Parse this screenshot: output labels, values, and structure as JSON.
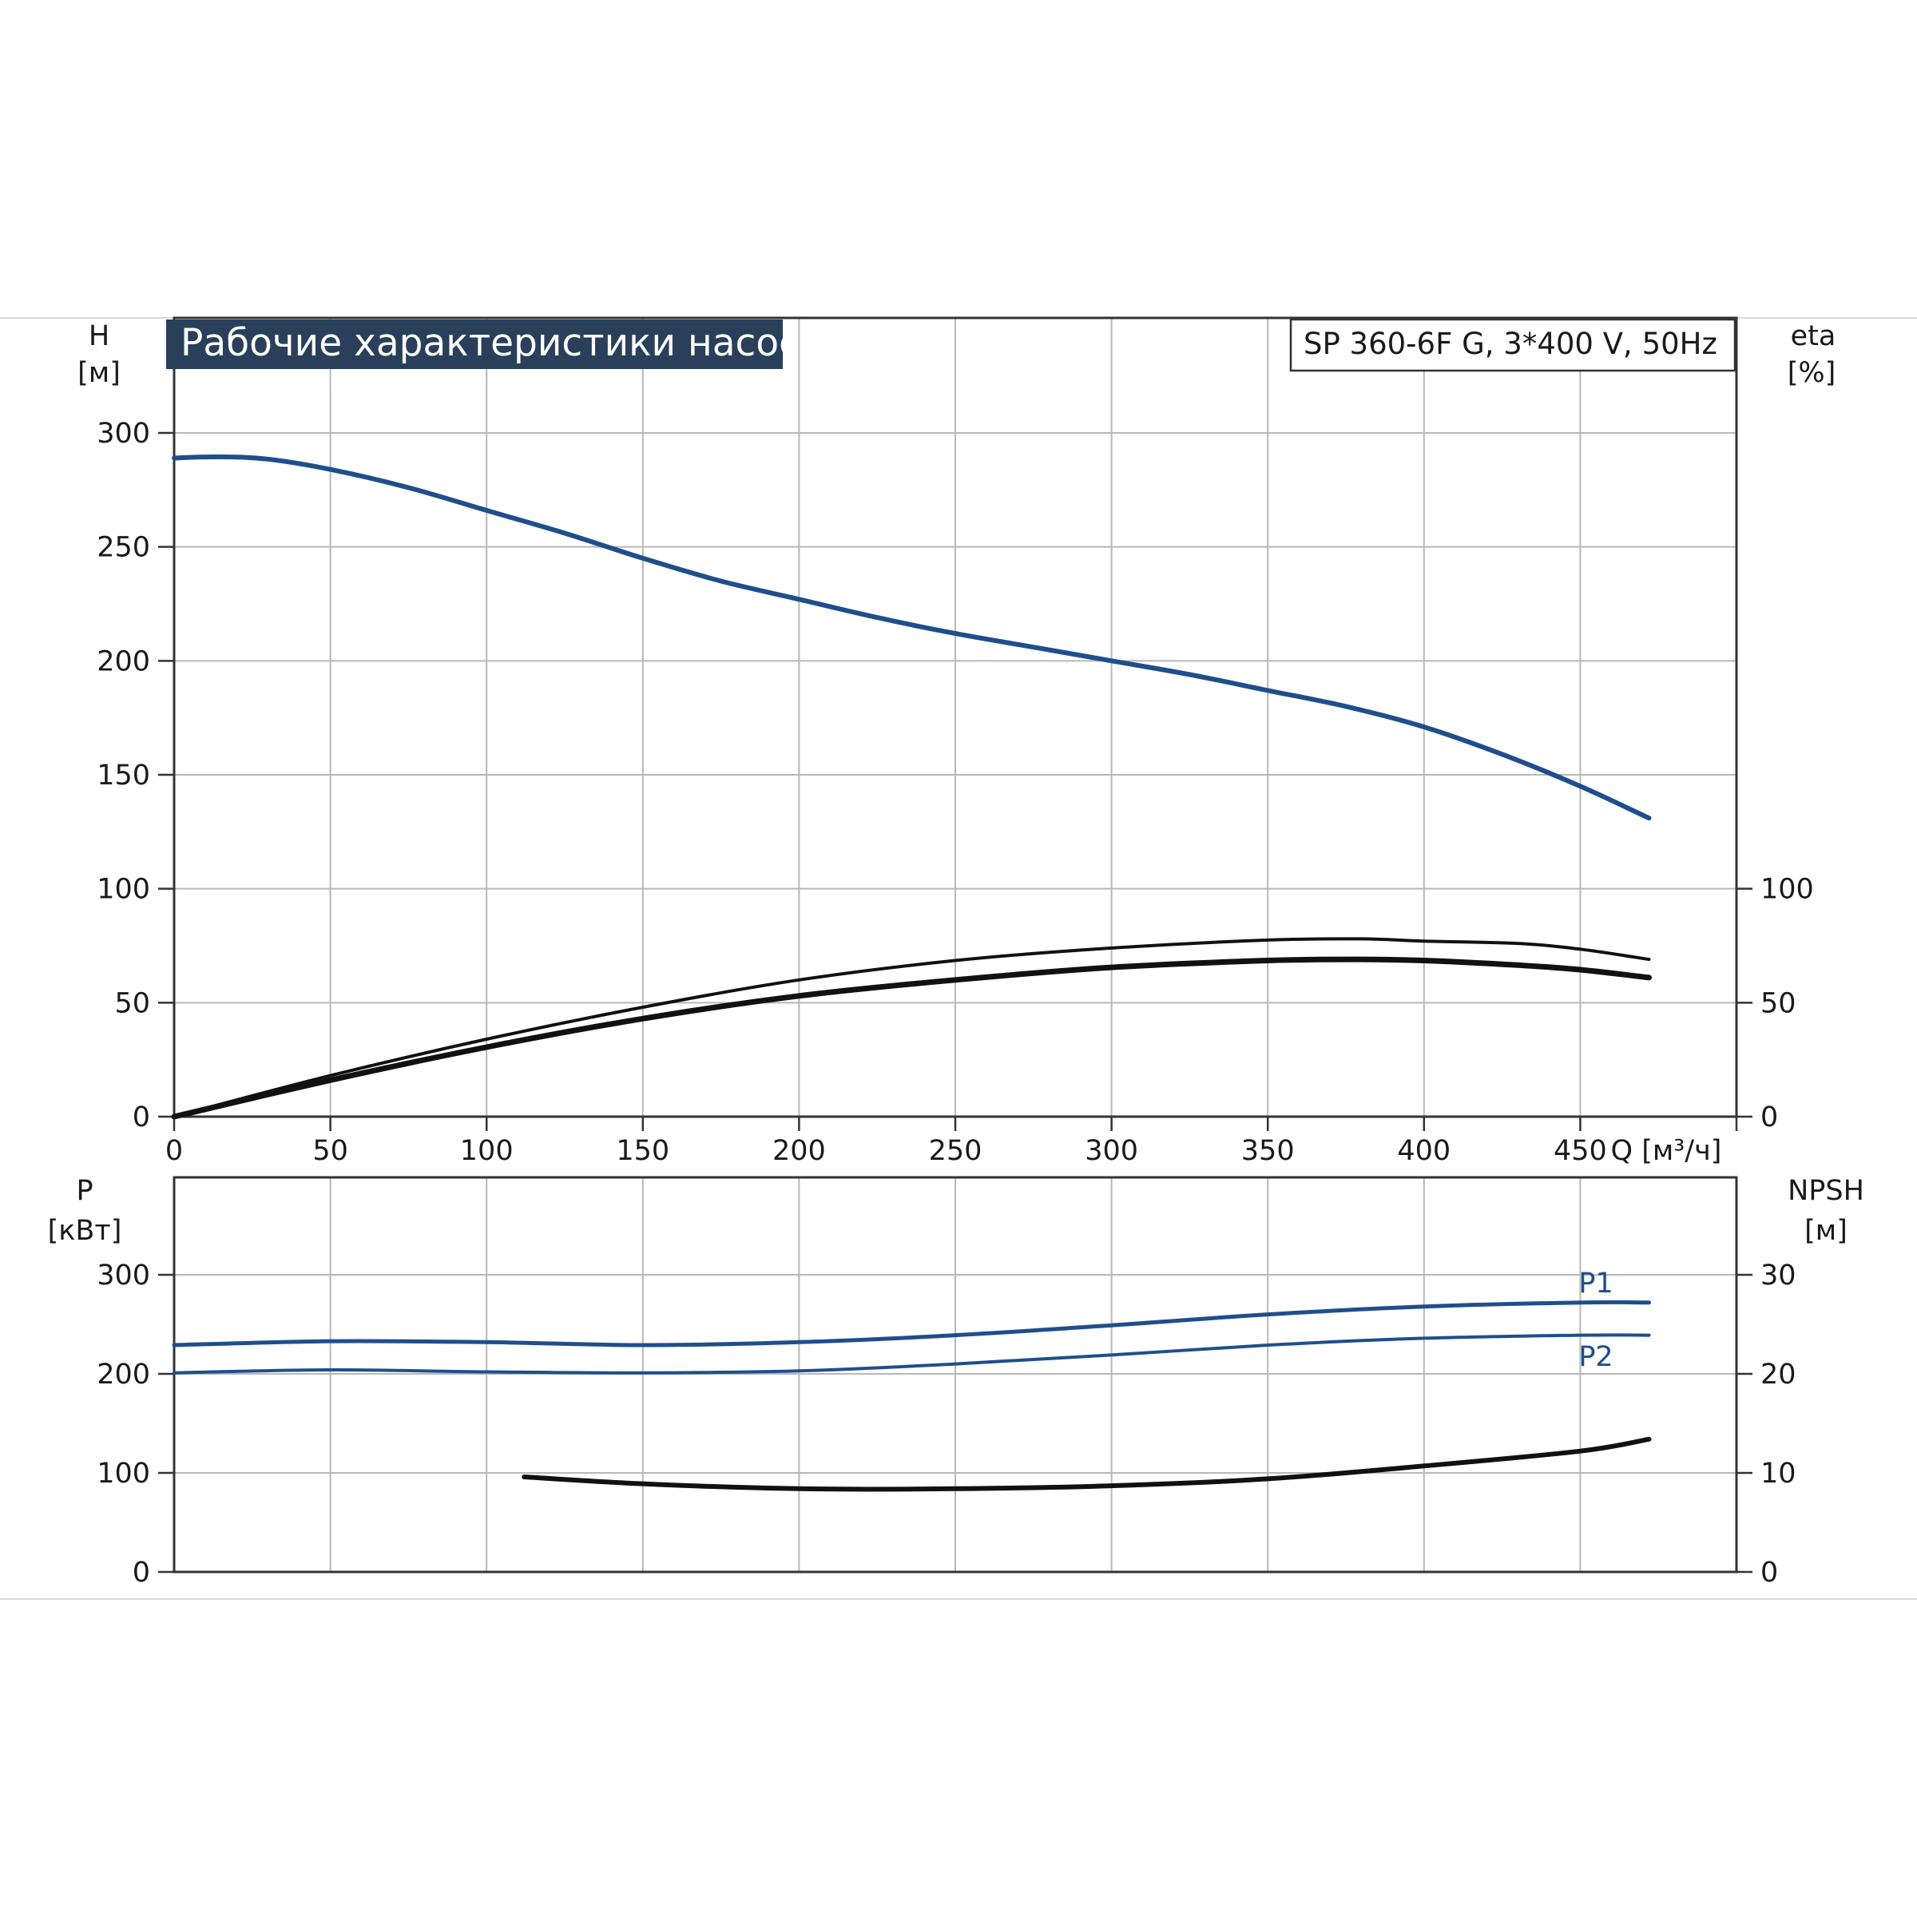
{
  "title": "Рабочие характеристики насоса",
  "model_label": "SP 360-6F G, 3*400 V, 50Hz",
  "colors": {
    "title_bg": "#2a3f5a",
    "curve_blue": "#1f4e8c",
    "curve_black": "#111111",
    "grid": "#b8b8b8",
    "axis": "#333333"
  },
  "chart_data": [
    {
      "type": "line",
      "name": "upper-chart",
      "x_axis": {
        "label": "Q [м³/ч]",
        "range": [
          0,
          500
        ],
        "ticks": [
          0,
          50,
          100,
          150,
          200,
          250,
          300,
          350,
          400,
          450
        ]
      },
      "y_left": {
        "label": [
          "H",
          "[м]"
        ],
        "range": [
          0,
          300
        ],
        "ticks": [
          0,
          50,
          100,
          150,
          200,
          250,
          300
        ]
      },
      "y_right": {
        "label": [
          "eta",
          "[%]"
        ],
        "range": [
          0,
          300
        ],
        "ticks": [
          0,
          50,
          100
        ]
      },
      "grid": true,
      "series": [
        {
          "key": "H",
          "color": "blue",
          "axis": "left",
          "points": [
            [
              0,
              289
            ],
            [
              15,
              289.5
            ],
            [
              30,
              288.5
            ],
            [
              50,
              284
            ],
            [
              75,
              276
            ],
            [
              100,
              266
            ],
            [
              125,
              256
            ],
            [
              150,
              245
            ],
            [
              175,
              235
            ],
            [
              200,
              227
            ],
            [
              225,
              219
            ],
            [
              250,
              212
            ],
            [
              275,
              206
            ],
            [
              300,
              200
            ],
            [
              325,
              194
            ],
            [
              350,
              187
            ],
            [
              375,
              180
            ],
            [
              400,
              171
            ],
            [
              425,
              159
            ],
            [
              450,
              145
            ],
            [
              472,
              131
            ]
          ]
        },
        {
          "key": "eta_upper",
          "color": "black",
          "axis": "right",
          "points": [
            [
              0,
              0
            ],
            [
              50,
              18
            ],
            [
              100,
              34
            ],
            [
              150,
              48
            ],
            [
              200,
              60
            ],
            [
              250,
              68.5
            ],
            [
              300,
              74
            ],
            [
              350,
              77.5
            ],
            [
              380,
              78
            ],
            [
              400,
              77
            ],
            [
              430,
              76
            ],
            [
              450,
              73.5
            ],
            [
              472,
              69
            ]
          ]
        },
        {
          "key": "eta_lower",
          "color": "black",
          "axis": "right",
          "points": [
            [
              0,
              0
            ],
            [
              50,
              16
            ],
            [
              100,
              30.5
            ],
            [
              150,
              43
            ],
            [
              200,
              53
            ],
            [
              250,
              60
            ],
            [
              300,
              65.5
            ],
            [
              350,
              68.5
            ],
            [
              380,
              69
            ],
            [
              400,
              68.5
            ],
            [
              430,
              66.5
            ],
            [
              450,
              64.5
            ],
            [
              472,
              61
            ]
          ]
        }
      ]
    },
    {
      "type": "line",
      "name": "lower-chart",
      "x_axis": {
        "range": [
          0,
          500
        ],
        "ticks": [
          0,
          50,
          100,
          150,
          200,
          250,
          300,
          350,
          400,
          450
        ]
      },
      "y_left": {
        "label": [
          "P",
          "[кВт]"
        ],
        "range": [
          0,
          350
        ],
        "ticks": [
          0,
          100,
          200,
          300
        ]
      },
      "y_right": {
        "label": [
          "NPSH",
          "[м]"
        ],
        "range": [
          0,
          35
        ],
        "ticks": [
          0,
          10,
          20,
          30
        ]
      },
      "grid": true,
      "series": [
        {
          "key": "P1",
          "name": "P1",
          "color": "blue",
          "axis": "left",
          "points": [
            [
              0,
              229
            ],
            [
              50,
              233
            ],
            [
              100,
              232
            ],
            [
              150,
              229
            ],
            [
              200,
              232
            ],
            [
              250,
              239
            ],
            [
              300,
              249
            ],
            [
              350,
              260
            ],
            [
              400,
              268
            ],
            [
              450,
              272
            ],
            [
              472,
              272
            ]
          ]
        },
        {
          "key": "P2",
          "name": "P2",
          "color": "blue",
          "axis": "left",
          "points": [
            [
              0,
              201
            ],
            [
              50,
              204
            ],
            [
              100,
              202
            ],
            [
              150,
              201
            ],
            [
              200,
              203
            ],
            [
              250,
              210
            ],
            [
              300,
              219
            ],
            [
              350,
              229
            ],
            [
              400,
              236
            ],
            [
              450,
              239
            ],
            [
              472,
              239
            ]
          ]
        },
        {
          "key": "NPSH",
          "color": "black",
          "axis": "right",
          "points": [
            [
              112,
              9.6
            ],
            [
              150,
              8.9
            ],
            [
              200,
              8.4
            ],
            [
              250,
              8.4
            ],
            [
              300,
              8.7
            ],
            [
              350,
              9.4
            ],
            [
              400,
              10.7
            ],
            [
              450,
              12.2
            ],
            [
              472,
              13.4
            ]
          ]
        }
      ]
    }
  ]
}
